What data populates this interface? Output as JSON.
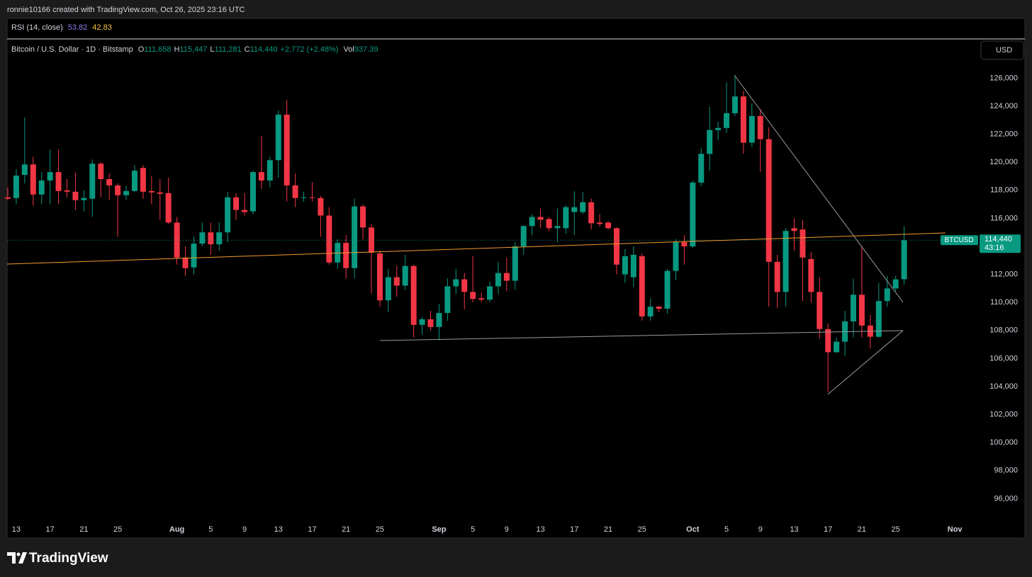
{
  "page": {
    "attribution": "ronnie10166 created with TradingView.com, Oct 26, 2025 23:16 UTC",
    "brand": "TradingView"
  },
  "chart_data": {
    "type": "candlestick",
    "header": {
      "rsi_label": "RSI (14, close)",
      "rsi_value_1": "53.82",
      "rsi_value_2": "42.83",
      "symbol": "Bitcoin / U.S. Dollar · 1D · Bitstamp",
      "open_letter": "O",
      "open_value": "111,658",
      "high_letter": "H",
      "high_value": "115,447",
      "low_letter": "L",
      "low_value": "111,281",
      "close_letter": "C",
      "close_value": "114,440",
      "change": "+2,772 (+2.48%)",
      "vol_letter": "Vol",
      "vol_value": "937.39",
      "currency": "USD",
      "countdown": "43:16"
    },
    "up_color": "#089981",
    "down_color": "#f23645",
    "x": [
      "07-12",
      "07-13",
      "07-14",
      "07-15",
      "07-16",
      "07-17",
      "07-18",
      "07-19",
      "07-20",
      "07-21",
      "07-22",
      "07-23",
      "07-24",
      "07-25",
      "07-26",
      "07-27",
      "07-28",
      "07-29",
      "07-30",
      "07-31",
      "08-01",
      "08-02",
      "08-03",
      "08-04",
      "08-05",
      "08-06",
      "08-07",
      "08-08",
      "08-09",
      "08-10",
      "08-11",
      "08-12",
      "08-13",
      "08-14",
      "08-15",
      "08-16",
      "08-17",
      "08-18",
      "08-19",
      "08-20",
      "08-21",
      "08-22",
      "08-23",
      "08-24",
      "08-25",
      "08-26",
      "08-27",
      "08-28",
      "08-29",
      "08-30",
      "08-31",
      "09-01",
      "09-02",
      "09-03",
      "09-04",
      "09-05",
      "09-06",
      "09-07",
      "09-08",
      "09-09",
      "09-10",
      "09-11",
      "09-12",
      "09-13",
      "09-14",
      "09-15",
      "09-16",
      "09-17",
      "09-18",
      "09-19",
      "09-20",
      "09-21",
      "09-22",
      "09-23",
      "09-24",
      "09-25",
      "09-26",
      "09-27",
      "09-28",
      "09-29",
      "09-30",
      "10-01",
      "10-02",
      "10-03",
      "10-04",
      "10-05",
      "10-06",
      "10-07",
      "10-08",
      "10-09",
      "10-10",
      "10-11",
      "10-12",
      "10-13",
      "10-14",
      "10-15",
      "10-16",
      "10-17",
      "10-18",
      "10-19",
      "10-20",
      "10-21",
      "10-22",
      "10-23",
      "10-24",
      "10-25",
      "10-26"
    ],
    "series": [
      {
        "name": "BTCUSD",
        "open": [
          117500,
          117450,
          119100,
          119850,
          117700,
          118700,
          119300,
          118000,
          117900,
          117300,
          117400,
          119900,
          118800,
          118350,
          117650,
          117950,
          119600,
          117950,
          117850,
          117800,
          115700,
          113200,
          112500,
          114200,
          115000,
          114150,
          115000,
          117500,
          116600,
          116500,
          119300,
          118700,
          120150,
          123400,
          118350,
          117450,
          117500,
          117450,
          116200,
          112850,
          114250,
          112450,
          116850,
          115350,
          113500,
          110150,
          111800,
          111200,
          112600,
          108400,
          108800,
          108250,
          109250,
          111150,
          111650,
          110750,
          110300,
          110200,
          111150,
          112100,
          111550,
          114000,
          115450,
          116100,
          115950,
          115300,
          115300,
          116450,
          116450,
          117150,
          115700,
          115700,
          115300,
          112000,
          111800,
          113300,
          109000,
          109700,
          109550,
          112250,
          114300,
          114000,
          118550,
          120600,
          122300,
          122450,
          123500,
          124700,
          121400,
          123300,
          121650,
          112900,
          110750,
          115300,
          115200,
          113100,
          110750,
          108100,
          106450,
          107200,
          108650,
          110550,
          108350,
          107550,
          110100,
          111000,
          111658
        ],
        "high": [
          118200,
          119500,
          123200,
          120400,
          119300,
          120900,
          120900,
          118800,
          119250,
          118000,
          120200,
          120000,
          119200,
          118500,
          118300,
          119800,
          119800,
          119000,
          118800,
          118900,
          116100,
          114000,
          114700,
          115700,
          115700,
          115700,
          117900,
          117800,
          117800,
          119400,
          121900,
          120400,
          123700,
          124450,
          119200,
          117900,
          118600,
          117600,
          116800,
          114500,
          114800,
          117400,
          117000,
          115600,
          113700,
          112400,
          112600,
          113400,
          112700,
          108950,
          109400,
          109900,
          111700,
          112400,
          112100,
          113300,
          110700,
          111500,
          112900,
          113200,
          114300,
          115500,
          116300,
          116700,
          116100,
          116700,
          116950,
          117950,
          117900,
          117400,
          116300,
          115800,
          115350,
          113800,
          114000,
          113500,
          110300,
          109750,
          112400,
          114500,
          114800,
          118700,
          121000,
          123950,
          122900,
          125700,
          126200,
          125100,
          124200,
          123800,
          122500,
          113400,
          115300,
          116000,
          115900,
          113600,
          111800,
          108500,
          107500,
          109400,
          111700,
          114000,
          109100,
          111400,
          111900,
          111900,
          115447
        ],
        "low": [
          117300,
          117000,
          118500,
          116900,
          117000,
          117000,
          117000,
          117500,
          116600,
          116500,
          116100,
          117500,
          117300,
          114700,
          117300,
          117900,
          117400,
          117000,
          115900,
          115600,
          112700,
          111900,
          112000,
          114000,
          113400,
          113700,
          114300,
          115900,
          116200,
          116300,
          118100,
          118200,
          118900,
          117200,
          116800,
          117200,
          117200,
          114700,
          112700,
          112400,
          111700,
          111700,
          114500,
          110650,
          109700,
          109300,
          110400,
          110900,
          107500,
          107700,
          108000,
          107300,
          108700,
          110600,
          109500,
          110000,
          110000,
          110000,
          110600,
          110800,
          110900,
          113400,
          114800,
          115300,
          115100,
          114300,
          114900,
          114800,
          116300,
          115200,
          115400,
          115200,
          112000,
          111400,
          111100,
          108700,
          108700,
          109300,
          109200,
          111600,
          112700,
          113900,
          118300,
          119400,
          121600,
          122100,
          123300,
          120600,
          121100,
          119300,
          109700,
          109600,
          109700,
          113700,
          110100,
          110000,
          107400,
          103600,
          106400,
          106200,
          107500,
          107500,
          106700,
          107500,
          109700,
          110800,
          111281
        ],
        "close": [
          117400,
          119050,
          119850,
          117700,
          118700,
          119300,
          117950,
          117900,
          117300,
          117450,
          119900,
          118800,
          118350,
          117650,
          117950,
          119400,
          117900,
          117850,
          117750,
          115700,
          113200,
          112450,
          114200,
          115000,
          114150,
          115000,
          117500,
          116600,
          116450,
          119300,
          118700,
          120150,
          123400,
          118350,
          117450,
          117500,
          117450,
          116200,
          112850,
          114250,
          112450,
          116850,
          115350,
          113550,
          110150,
          111800,
          111200,
          112600,
          108400,
          108800,
          108250,
          109250,
          111150,
          111650,
          110750,
          110250,
          110200,
          111150,
          112100,
          111550,
          114000,
          115450,
          116100,
          115900,
          115300,
          115450,
          116800,
          116800,
          117150,
          115650,
          115600,
          115300,
          112700,
          113300,
          113400,
          109000,
          109700,
          109550,
          112250,
          114300,
          114000,
          118550,
          120600,
          122300,
          122450,
          123500,
          124700,
          121400,
          123300,
          121650,
          112900,
          110750,
          115100,
          115100,
          113200,
          110750,
          108100,
          106450,
          107200,
          108650,
          110550,
          108350,
          107550,
          110100,
          111000,
          111650,
          114440
        ]
      }
    ],
    "ylim": [
      94300,
      128700
    ],
    "yticks": [
      {
        "value": 96000,
        "label": "96,000"
      },
      {
        "value": 98000,
        "label": "98,000"
      },
      {
        "value": 100000,
        "label": "100,000"
      },
      {
        "value": 102000,
        "label": "102,000"
      },
      {
        "value": 104000,
        "label": "104,000"
      },
      {
        "value": 106000,
        "label": "106,000"
      },
      {
        "value": 108000,
        "label": "108,000"
      },
      {
        "value": 110000,
        "label": "110,000"
      },
      {
        "value": 112000,
        "label": "112,000"
      },
      {
        "value": 114000,
        "label": "114,000"
      },
      {
        "value": 116000,
        "label": "116,000"
      },
      {
        "value": 118000,
        "label": "118,000"
      },
      {
        "value": 120000,
        "label": "120,000"
      },
      {
        "value": 122000,
        "label": "122,000"
      },
      {
        "value": 124000,
        "label": "124,000"
      },
      {
        "value": 126000,
        "label": "126,000"
      }
    ],
    "xticks": [
      {
        "value": "07-13",
        "label": "13"
      },
      {
        "value": "07-17",
        "label": "17"
      },
      {
        "value": "07-21",
        "label": "21"
      },
      {
        "value": "07-25",
        "label": "25"
      },
      {
        "value": "08-01",
        "label": "Aug"
      },
      {
        "value": "08-05",
        "label": "5"
      },
      {
        "value": "08-09",
        "label": "9"
      },
      {
        "value": "08-13",
        "label": "13"
      },
      {
        "value": "08-17",
        "label": "17"
      },
      {
        "value": "08-21",
        "label": "21"
      },
      {
        "value": "08-25",
        "label": "25"
      },
      {
        "value": "09-01",
        "label": "Sep"
      },
      {
        "value": "09-05",
        "label": "5"
      },
      {
        "value": "09-09",
        "label": "9"
      },
      {
        "value": "09-13",
        "label": "13"
      },
      {
        "value": "09-17",
        "label": "17"
      },
      {
        "value": "09-21",
        "label": "21"
      },
      {
        "value": "09-25",
        "label": "25"
      },
      {
        "value": "10-01",
        "label": "Oct"
      },
      {
        "value": "10-05",
        "label": "5"
      },
      {
        "value": "10-09",
        "label": "9"
      },
      {
        "value": "10-13",
        "label": "13"
      },
      {
        "value": "10-17",
        "label": "17"
      },
      {
        "value": "10-21",
        "label": "21"
      },
      {
        "value": "10-25",
        "label": "25"
      },
      {
        "value": "11-01",
        "label": "Nov"
      }
    ],
    "grid": false
  }
}
